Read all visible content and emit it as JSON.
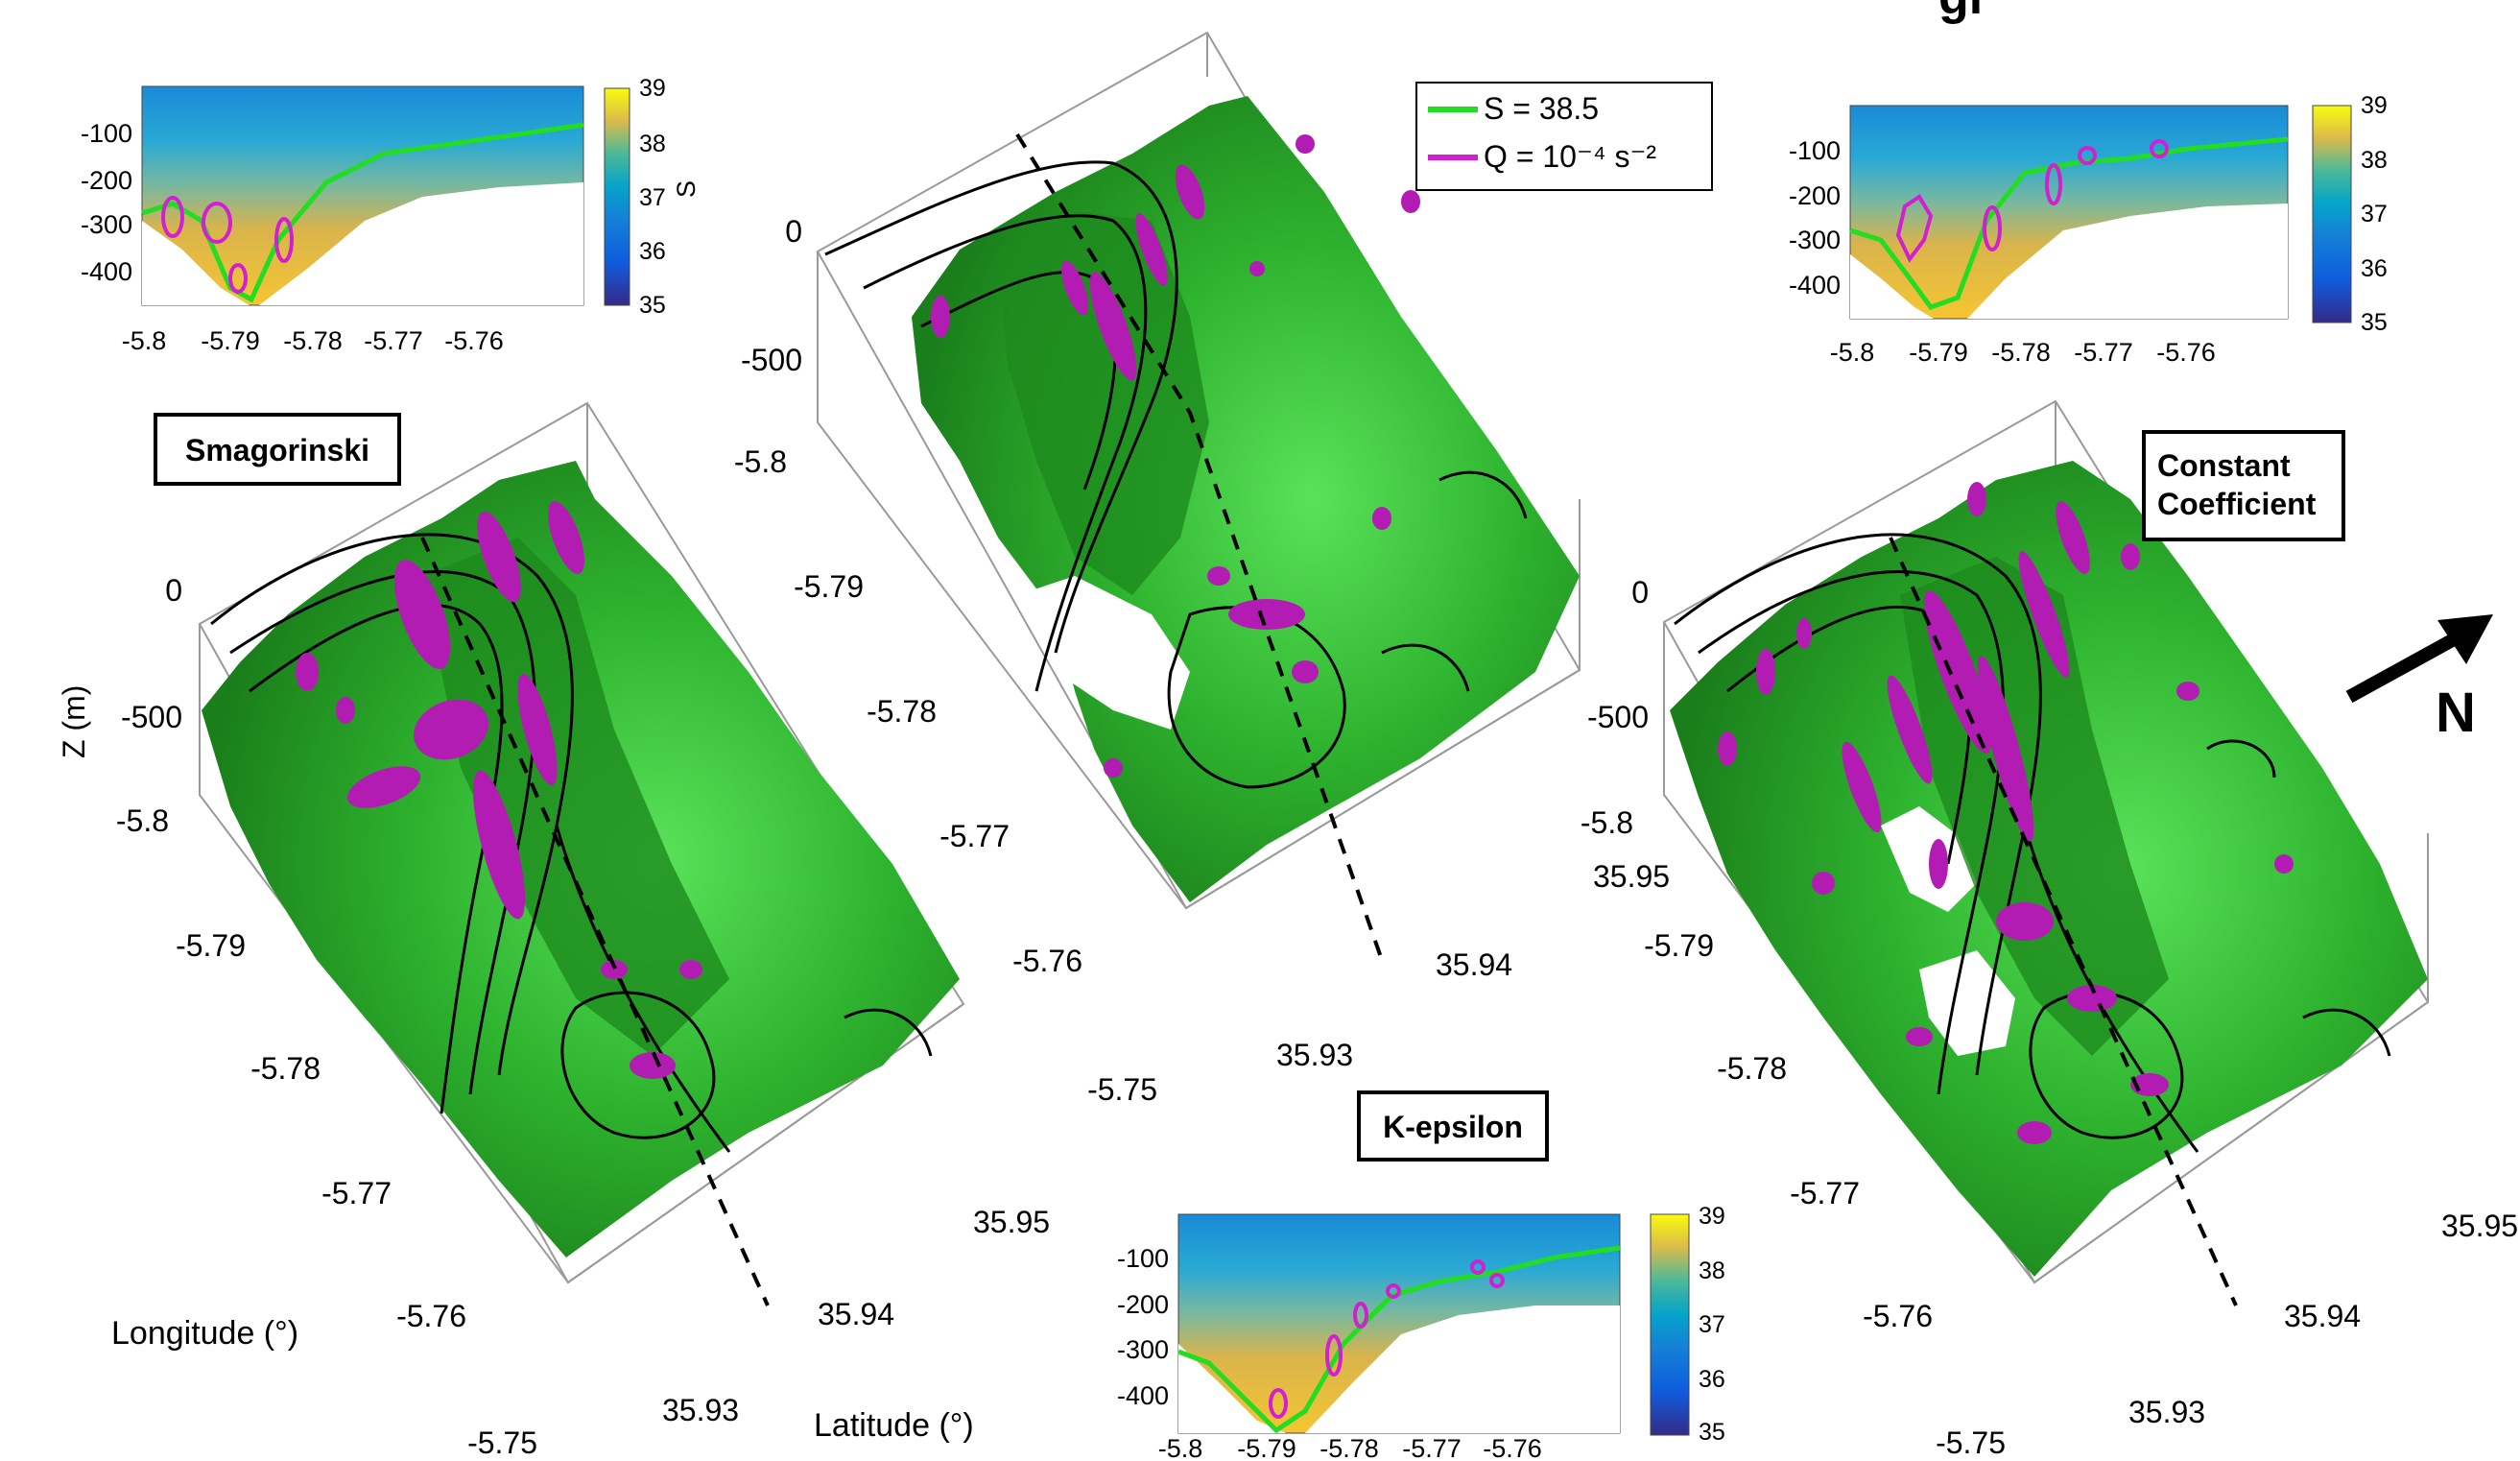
{
  "top_title_fragment": "gi",
  "legend": {
    "salinity_label": "S = 38.5",
    "q_label": "Q = 10⁻⁴ s⁻²",
    "salinity_color": "#22dd22",
    "q_color": "#d11fd1"
  },
  "north_label": "N",
  "colors": {
    "surface_green": "#1f9a1f",
    "surface_light": "#3fd33f",
    "q_magenta": "#b21cb2",
    "contour": "#000000"
  },
  "panels": [
    {
      "id": "smagorinski",
      "label": "Smagorinski",
      "axis_label_z": "Z (m)",
      "axis_label_lon": "Longitude (°)",
      "axis_label_lat": "Latitude (°)",
      "z_ticks": [
        "0",
        "-500"
      ],
      "lon_ticks": [
        "-5.8",
        "-5.79",
        "-5.78",
        "-5.77",
        "-5.76",
        "-5.75"
      ],
      "lat_ticks": [
        "35.93",
        "35.94",
        "35.95"
      ]
    },
    {
      "id": "k-epsilon",
      "label": "K-epsilon",
      "z_ticks": [
        "0",
        "-500"
      ],
      "lon_ticks": [
        "-5.8",
        "-5.79",
        "-5.78",
        "-5.77",
        "-5.76",
        "-5.75"
      ],
      "lat_ticks": [
        "35.93",
        "35.94",
        "35.95"
      ]
    },
    {
      "id": "constant-coefficient",
      "label": "Constant\nCoefficient",
      "label_line1": "Constant",
      "label_line2": "Coefficient",
      "z_ticks": [
        "0",
        "-500"
      ],
      "lon_ticks": [
        "-5.8",
        "-5.79",
        "-5.78",
        "-5.77",
        "-5.76",
        "-5.75"
      ],
      "lat_ticks": [
        "35.93",
        "35.94",
        "35.95"
      ]
    }
  ],
  "chart_data": [
    {
      "type": "heatmap",
      "panel": "Smagorinski section",
      "x_ticks": [
        "-5.8",
        "-5.79",
        "-5.78",
        "-5.77",
        "-5.76"
      ],
      "y_ticks": [
        "-100",
        "-200",
        "-300",
        "-400"
      ],
      "colorbar": {
        "label": "S",
        "ticks": [
          "39",
          "38",
          "37",
          "36",
          "35"
        ],
        "range": [
          35,
          39
        ]
      },
      "series": [
        {
          "name": "S = 38.5",
          "isoline_depth_m": [
            [
              -5.8,
              -280
            ],
            [
              -5.795,
              -300
            ],
            [
              -5.79,
              -420
            ],
            [
              -5.787,
              -440
            ],
            [
              -5.782,
              -320
            ],
            [
              -5.775,
              -180
            ],
            [
              -5.77,
              -150
            ],
            [
              -5.76,
              -110
            ],
            [
              -5.75,
              -80
            ]
          ]
        }
      ]
    },
    {
      "type": "heatmap",
      "panel": "Constant Coefficient section",
      "x_ticks": [
        "-5.8",
        "-5.79",
        "-5.78",
        "-5.77",
        "-5.76"
      ],
      "y_ticks": [
        "-100",
        "-200",
        "-300",
        "-400"
      ],
      "colorbar": {
        "ticks": [
          "39",
          "38",
          "37",
          "36",
          "35"
        ],
        "range": [
          35,
          39
        ]
      },
      "series": [
        {
          "name": "S = 38.5",
          "isoline_depth_m": [
            [
              -5.8,
              -230
            ],
            [
              -5.795,
              -260
            ],
            [
              -5.79,
              -410
            ],
            [
              -5.786,
              -440
            ],
            [
              -5.782,
              -300
            ],
            [
              -5.775,
              -140
            ],
            [
              -5.77,
              -110
            ],
            [
              -5.76,
              -80
            ],
            [
              -5.75,
              -70
            ]
          ]
        }
      ]
    },
    {
      "type": "heatmap",
      "panel": "K-epsilon section",
      "x_ticks": [
        "-5.8",
        "-5.79",
        "-5.78",
        "-5.77",
        "-5.76"
      ],
      "y_ticks": [
        "-100",
        "-200",
        "-300",
        "-400"
      ],
      "colorbar": {
        "ticks": [
          "39",
          "38",
          "37",
          "36",
          "35"
        ],
        "range": [
          35,
          39
        ]
      },
      "series": [
        {
          "name": "S = 38.5",
          "isoline_depth_m": [
            [
              -5.8,
              -270
            ],
            [
              -5.795,
              -330
            ],
            [
              -5.79,
              -440
            ],
            [
              -5.786,
              -460
            ],
            [
              -5.782,
              -300
            ],
            [
              -5.775,
              -160
            ],
            [
              -5.77,
              -120
            ],
            [
              -5.76,
              -90
            ],
            [
              -5.75,
              -70
            ]
          ]
        }
      ]
    }
  ]
}
